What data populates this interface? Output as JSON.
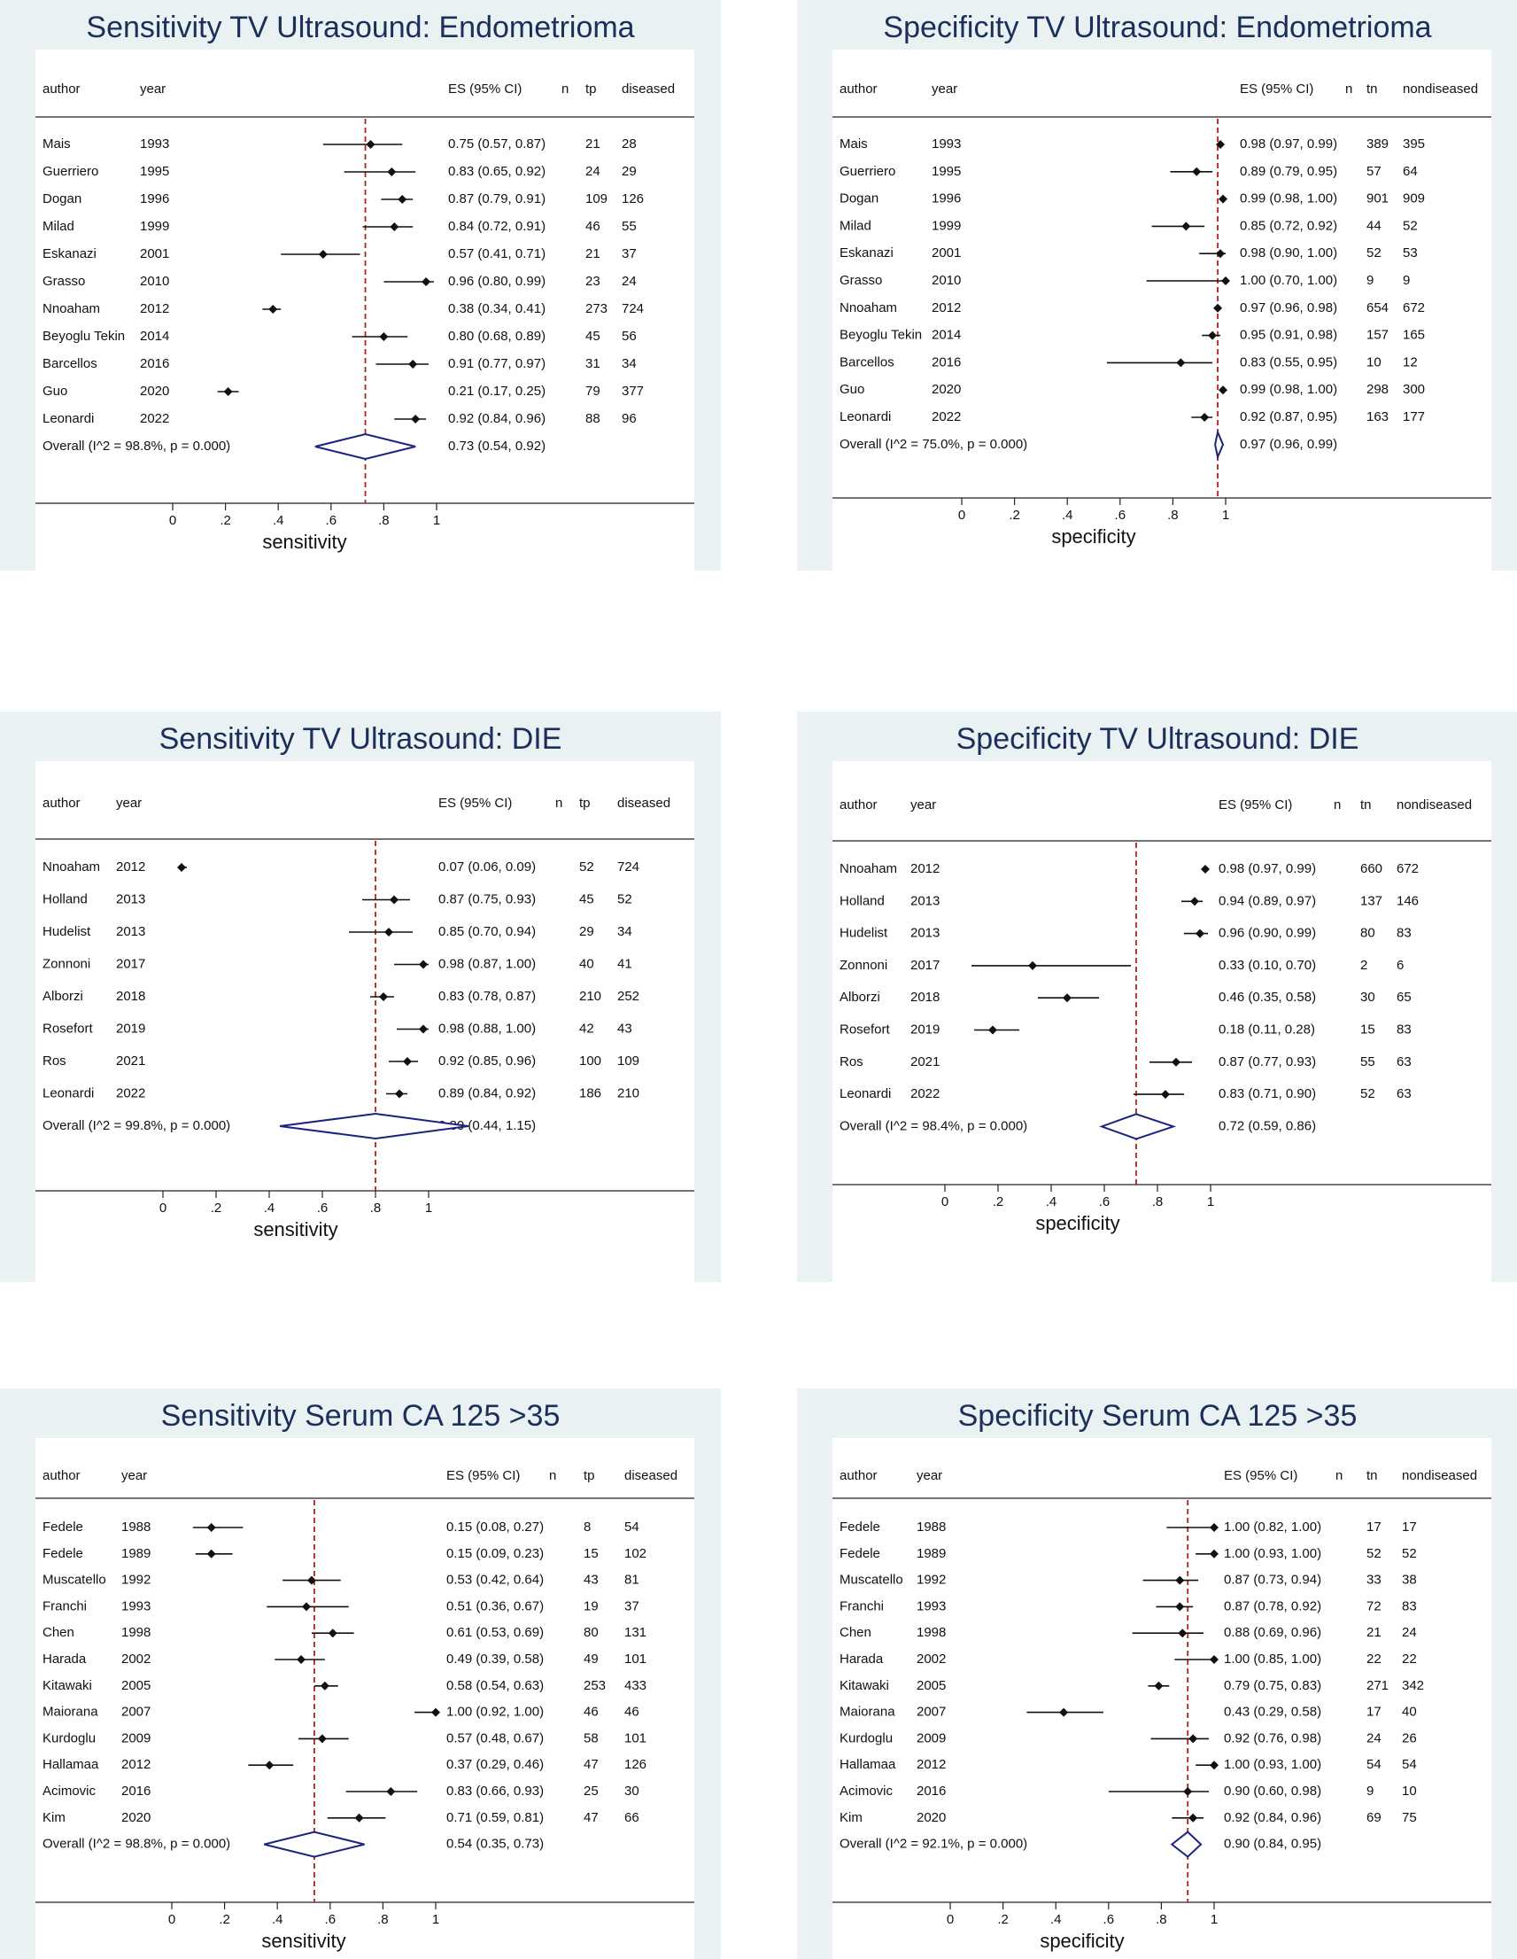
{
  "colors": {
    "panel_bg": "#e9f1f3",
    "plot_bg": "#ffffff",
    "title": "#1a2f5a",
    "diamond": "#1a237e",
    "ref_line": "#b22222",
    "marker": "#111111",
    "text": "#111111"
  },
  "chart_data": [
    {
      "type": "forest",
      "title": "Sensitivity TV Ultrasound: Endometrioma",
      "columns": {
        "author": "author",
        "year": "year",
        "es": "ES (95% CI)",
        "n": "n",
        "count": "tp",
        "total": "diseased"
      },
      "xlabel": "sensitivity",
      "xticks": [
        "0",
        ".2",
        ".4",
        ".6",
        ".8",
        "1"
      ],
      "xlim": [
        0,
        1
      ],
      "reference_line": 0.73,
      "studies": [
        {
          "author": "Mais",
          "year": "1993",
          "es": 0.75,
          "lo": 0.57,
          "hi": 0.87,
          "ci_text": "0.75 (0.57, 0.87)",
          "count": "21",
          "total": "28"
        },
        {
          "author": "Guerriero",
          "year": "1995",
          "es": 0.83,
          "lo": 0.65,
          "hi": 0.92,
          "ci_text": "0.83 (0.65, 0.92)",
          "count": "24",
          "total": "29"
        },
        {
          "author": "Dogan",
          "year": "1996",
          "es": 0.87,
          "lo": 0.79,
          "hi": 0.91,
          "ci_text": "0.87 (0.79, 0.91)",
          "count": "109",
          "total": "126"
        },
        {
          "author": "Milad",
          "year": "1999",
          "es": 0.84,
          "lo": 0.72,
          "hi": 0.91,
          "ci_text": "0.84 (0.72, 0.91)",
          "count": "46",
          "total": "55"
        },
        {
          "author": "Eskanazi",
          "year": "2001",
          "es": 0.57,
          "lo": 0.41,
          "hi": 0.71,
          "ci_text": "0.57 (0.41, 0.71)",
          "count": "21",
          "total": "37"
        },
        {
          "author": "Grasso",
          "year": "2010",
          "es": 0.96,
          "lo": 0.8,
          "hi": 0.99,
          "ci_text": "0.96 (0.80, 0.99)",
          "count": "23",
          "total": "24"
        },
        {
          "author": "Nnoaham",
          "year": "2012",
          "es": 0.38,
          "lo": 0.34,
          "hi": 0.41,
          "ci_text": "0.38 (0.34, 0.41)",
          "count": "273",
          "total": "724"
        },
        {
          "author": "Beyoglu Tekin",
          "year": "2014",
          "es": 0.8,
          "lo": 0.68,
          "hi": 0.89,
          "ci_text": "0.80 (0.68, 0.89)",
          "count": "45",
          "total": "56"
        },
        {
          "author": "Barcellos",
          "year": "2016",
          "es": 0.91,
          "lo": 0.77,
          "hi": 0.97,
          "ci_text": "0.91 (0.77, 0.97)",
          "count": "31",
          "total": "34"
        },
        {
          "author": "Guo",
          "year": "2020",
          "es": 0.21,
          "lo": 0.17,
          "hi": 0.25,
          "ci_text": "0.21 (0.17, 0.25)",
          "count": "79",
          "total": "377"
        },
        {
          "author": "Leonardi",
          "year": "2022",
          "es": 0.92,
          "lo": 0.84,
          "hi": 0.96,
          "ci_text": "0.92 (0.84, 0.96)",
          "count": "88",
          "total": "96"
        }
      ],
      "overall": {
        "label": "Overall  (I^2 = 98.8%, p = 0.000)",
        "es": 0.73,
        "lo": 0.54,
        "hi": 0.92,
        "ci_text": "0.73 (0.54, 0.92)"
      }
    },
    {
      "type": "forest",
      "title": "Specificity TV Ultrasound: Endometrioma",
      "columns": {
        "author": "author",
        "year": "year",
        "es": "ES (95% CI)",
        "n": "n",
        "count": "tn",
        "total": "nondiseased"
      },
      "xlabel": "specificity",
      "xticks": [
        "0",
        ".2",
        ".4",
        ".6",
        ".8",
        "1"
      ],
      "xlim": [
        0,
        1
      ],
      "reference_line": 0.97,
      "studies": [
        {
          "author": "Mais",
          "year": "1993",
          "es": 0.98,
          "lo": 0.97,
          "hi": 0.99,
          "ci_text": "0.98 (0.97, 0.99)",
          "count": "389",
          "total": "395"
        },
        {
          "author": "Guerriero",
          "year": "1995",
          "es": 0.89,
          "lo": 0.79,
          "hi": 0.95,
          "ci_text": "0.89 (0.79, 0.95)",
          "count": "57",
          "total": "64"
        },
        {
          "author": "Dogan",
          "year": "1996",
          "es": 0.99,
          "lo": 0.98,
          "hi": 1.0,
          "ci_text": "0.99 (0.98, 1.00)",
          "count": "901",
          "total": "909"
        },
        {
          "author": "Milad",
          "year": "1999",
          "es": 0.85,
          "lo": 0.72,
          "hi": 0.92,
          "ci_text": "0.85 (0.72, 0.92)",
          "count": "44",
          "total": "52"
        },
        {
          "author": "Eskanazi",
          "year": "2001",
          "es": 0.98,
          "lo": 0.9,
          "hi": 1.0,
          "ci_text": "0.98 (0.90, 1.00)",
          "count": "52",
          "total": "53"
        },
        {
          "author": "Grasso",
          "year": "2010",
          "es": 1.0,
          "lo": 0.7,
          "hi": 1.0,
          "ci_text": "1.00 (0.70, 1.00)",
          "count": "9",
          "total": "9"
        },
        {
          "author": "Nnoaham",
          "year": "2012",
          "es": 0.97,
          "lo": 0.96,
          "hi": 0.98,
          "ci_text": "0.97 (0.96, 0.98)",
          "count": "654",
          "total": "672"
        },
        {
          "author": "Beyoglu Tekin",
          "year": "2014",
          "es": 0.95,
          "lo": 0.91,
          "hi": 0.98,
          "ci_text": "0.95 (0.91, 0.98)",
          "count": "157",
          "total": "165"
        },
        {
          "author": "Barcellos",
          "year": "2016",
          "es": 0.83,
          "lo": 0.55,
          "hi": 0.95,
          "ci_text": "0.83 (0.55, 0.95)",
          "count": "10",
          "total": "12"
        },
        {
          "author": "Guo",
          "year": "2020",
          "es": 0.99,
          "lo": 0.98,
          "hi": 1.0,
          "ci_text": "0.99 (0.98, 1.00)",
          "count": "298",
          "total": "300"
        },
        {
          "author": "Leonardi",
          "year": "2022",
          "es": 0.92,
          "lo": 0.87,
          "hi": 0.95,
          "ci_text": "0.92 (0.87, 0.95)",
          "count": "163",
          "total": "177"
        }
      ],
      "overall": {
        "label": "Overall  (I^2 = 75.0%, p = 0.000)",
        "es": 0.97,
        "lo": 0.96,
        "hi": 0.99,
        "ci_text": "0.97 (0.96, 0.99)"
      }
    },
    {
      "type": "forest",
      "title": "Sensitivity TV Ultrasound: DIE",
      "columns": {
        "author": "author",
        "year": "year",
        "es": "ES (95% CI)",
        "n": "n",
        "count": "tp",
        "total": "diseased"
      },
      "xlabel": "sensitivity",
      "xticks": [
        "0",
        ".2",
        ".4",
        ".6",
        ".8",
        "1"
      ],
      "xlim": [
        0,
        1
      ],
      "reference_line": 0.8,
      "studies": [
        {
          "author": "Nnoaham",
          "year": "2012",
          "es": 0.07,
          "lo": 0.06,
          "hi": 0.09,
          "ci_text": "0.07 (0.06, 0.09)",
          "count": "52",
          "total": "724"
        },
        {
          "author": "Holland",
          "year": "2013",
          "es": 0.87,
          "lo": 0.75,
          "hi": 0.93,
          "ci_text": "0.87 (0.75, 0.93)",
          "count": "45",
          "total": "52"
        },
        {
          "author": "Hudelist",
          "year": "2013",
          "es": 0.85,
          "lo": 0.7,
          "hi": 0.94,
          "ci_text": "0.85 (0.70, 0.94)",
          "count": "29",
          "total": "34"
        },
        {
          "author": "Zonnoni",
          "year": "2017",
          "es": 0.98,
          "lo": 0.87,
          "hi": 1.0,
          "ci_text": "0.98 (0.87, 1.00)",
          "count": "40",
          "total": "41"
        },
        {
          "author": "Alborzi",
          "year": "2018",
          "es": 0.83,
          "lo": 0.78,
          "hi": 0.87,
          "ci_text": "0.83 (0.78, 0.87)",
          "count": "210",
          "total": "252"
        },
        {
          "author": "Rosefort",
          "year": "2019",
          "es": 0.98,
          "lo": 0.88,
          "hi": 1.0,
          "ci_text": "0.98 (0.88, 1.00)",
          "count": "42",
          "total": "43"
        },
        {
          "author": "Ros",
          "year": "2021",
          "es": 0.92,
          "lo": 0.85,
          "hi": 0.96,
          "ci_text": "0.92 (0.85, 0.96)",
          "count": "100",
          "total": "109"
        },
        {
          "author": "Leonardi",
          "year": "2022",
          "es": 0.89,
          "lo": 0.84,
          "hi": 0.92,
          "ci_text": "0.89 (0.84, 0.92)",
          "count": "186",
          "total": "210"
        }
      ],
      "overall": {
        "label": "Overall  (I^2 = 99.8%, p = 0.000)",
        "es": 0.8,
        "lo": 0.44,
        "hi": 1.15,
        "ci_text": "0.80 (0.44, 1.15)"
      }
    },
    {
      "type": "forest",
      "title": "Specificity TV Ultrasound: DIE",
      "columns": {
        "author": "author",
        "year": "year",
        "es": "ES (95% CI)",
        "n": "n",
        "count": "tn",
        "total": "nondiseased"
      },
      "xlabel": "specificity",
      "xticks": [
        "0",
        ".2",
        ".4",
        ".6",
        ".8",
        "1"
      ],
      "xlim": [
        0,
        1
      ],
      "reference_line": 0.72,
      "studies": [
        {
          "author": "Nnoaham",
          "year": "2012",
          "es": 0.98,
          "lo": 0.97,
          "hi": 0.99,
          "ci_text": "0.98 (0.97, 0.99)",
          "count": "660",
          "total": "672"
        },
        {
          "author": "Holland",
          "year": "2013",
          "es": 0.94,
          "lo": 0.89,
          "hi": 0.97,
          "ci_text": "0.94 (0.89, 0.97)",
          "count": "137",
          "total": "146"
        },
        {
          "author": "Hudelist",
          "year": "2013",
          "es": 0.96,
          "lo": 0.9,
          "hi": 0.99,
          "ci_text": "0.96 (0.90, 0.99)",
          "count": "80",
          "total": "83"
        },
        {
          "author": "Zonnoni",
          "year": "2017",
          "es": 0.33,
          "lo": 0.1,
          "hi": 0.7,
          "ci_text": "0.33 (0.10, 0.70)",
          "count": "2",
          "total": "6"
        },
        {
          "author": "Alborzi",
          "year": "2018",
          "es": 0.46,
          "lo": 0.35,
          "hi": 0.58,
          "ci_text": "0.46 (0.35, 0.58)",
          "count": "30",
          "total": "65"
        },
        {
          "author": "Rosefort",
          "year": "2019",
          "es": 0.18,
          "lo": 0.11,
          "hi": 0.28,
          "ci_text": "0.18 (0.11, 0.28)",
          "count": "15",
          "total": "83"
        },
        {
          "author": "Ros",
          "year": "2021",
          "es": 0.87,
          "lo": 0.77,
          "hi": 0.93,
          "ci_text": "0.87 (0.77, 0.93)",
          "count": "55",
          "total": "63"
        },
        {
          "author": "Leonardi",
          "year": "2022",
          "es": 0.83,
          "lo": 0.71,
          "hi": 0.9,
          "ci_text": "0.83 (0.71, 0.90)",
          "count": "52",
          "total": "63"
        }
      ],
      "overall": {
        "label": "Overall  (I^2 = 98.4%, p = 0.000)",
        "es": 0.72,
        "lo": 0.59,
        "hi": 0.86,
        "ci_text": "0.72 (0.59, 0.86)"
      }
    },
    {
      "type": "forest",
      "title": "Sensitivity Serum CA 125 >35",
      "columns": {
        "author": "author",
        "year": "year",
        "es": "ES (95% CI)",
        "n": "n",
        "count": "tp",
        "total": "diseased"
      },
      "xlabel": "sensitivity",
      "xticks": [
        "0",
        ".2",
        ".4",
        ".6",
        ".8",
        "1"
      ],
      "xlim": [
        0,
        1
      ],
      "reference_line": 0.54,
      "studies": [
        {
          "author": "Fedele",
          "year": "1988",
          "es": 0.15,
          "lo": 0.08,
          "hi": 0.27,
          "ci_text": "0.15 (0.08, 0.27)",
          "count": "8",
          "total": "54"
        },
        {
          "author": "Fedele",
          "year": "1989",
          "es": 0.15,
          "lo": 0.09,
          "hi": 0.23,
          "ci_text": "0.15 (0.09, 0.23)",
          "count": "15",
          "total": "102"
        },
        {
          "author": "Muscatello",
          "year": "1992",
          "es": 0.53,
          "lo": 0.42,
          "hi": 0.64,
          "ci_text": "0.53 (0.42, 0.64)",
          "count": "43",
          "total": "81"
        },
        {
          "author": "Franchi",
          "year": "1993",
          "es": 0.51,
          "lo": 0.36,
          "hi": 0.67,
          "ci_text": "0.51 (0.36, 0.67)",
          "count": "19",
          "total": "37"
        },
        {
          "author": "Chen",
          "year": "1998",
          "es": 0.61,
          "lo": 0.53,
          "hi": 0.69,
          "ci_text": "0.61 (0.53, 0.69)",
          "count": "80",
          "total": "131"
        },
        {
          "author": "Harada",
          "year": "2002",
          "es": 0.49,
          "lo": 0.39,
          "hi": 0.58,
          "ci_text": "0.49 (0.39, 0.58)",
          "count": "49",
          "total": "101"
        },
        {
          "author": "Kitawaki",
          "year": "2005",
          "es": 0.58,
          "lo": 0.54,
          "hi": 0.63,
          "ci_text": "0.58 (0.54, 0.63)",
          "count": "253",
          "total": "433"
        },
        {
          "author": "Maiorana",
          "year": "2007",
          "es": 1.0,
          "lo": 0.92,
          "hi": 1.0,
          "ci_text": "1.00 (0.92, 1.00)",
          "count": "46",
          "total": "46"
        },
        {
          "author": "Kurdoglu",
          "year": "2009",
          "es": 0.57,
          "lo": 0.48,
          "hi": 0.67,
          "ci_text": "0.57 (0.48, 0.67)",
          "count": "58",
          "total": "101"
        },
        {
          "author": "Hallamaa",
          "year": "2012",
          "es": 0.37,
          "lo": 0.29,
          "hi": 0.46,
          "ci_text": "0.37 (0.29, 0.46)",
          "count": "47",
          "total": "126"
        },
        {
          "author": "Acimovic",
          "year": "2016",
          "es": 0.83,
          "lo": 0.66,
          "hi": 0.93,
          "ci_text": "0.83 (0.66, 0.93)",
          "count": "25",
          "total": "30"
        },
        {
          "author": "Kim",
          "year": "2020",
          "es": 0.71,
          "lo": 0.59,
          "hi": 0.81,
          "ci_text": "0.71 (0.59, 0.81)",
          "count": "47",
          "total": "66"
        }
      ],
      "overall": {
        "label": "Overall  (I^2 = 98.8%, p = 0.000)",
        "es": 0.54,
        "lo": 0.35,
        "hi": 0.73,
        "ci_text": "0.54 (0.35, 0.73)"
      }
    },
    {
      "type": "forest",
      "title": "Specificity Serum CA 125 >35",
      "columns": {
        "author": "author",
        "year": "year",
        "es": "ES (95% CI)",
        "n": "n",
        "count": "tn",
        "total": "nondiseased"
      },
      "xlabel": "specificity",
      "xticks": [
        "0",
        ".2",
        ".4",
        ".6",
        ".8",
        "1"
      ],
      "xlim": [
        0,
        1
      ],
      "reference_line": 0.9,
      "studies": [
        {
          "author": "Fedele",
          "year": "1988",
          "es": 1.0,
          "lo": 0.82,
          "hi": 1.0,
          "ci_text": "1.00 (0.82, 1.00)",
          "count": "17",
          "total": "17"
        },
        {
          "author": "Fedele",
          "year": "1989",
          "es": 1.0,
          "lo": 0.93,
          "hi": 1.0,
          "ci_text": "1.00 (0.93, 1.00)",
          "count": "52",
          "total": "52"
        },
        {
          "author": "Muscatello",
          "year": "1992",
          "es": 0.87,
          "lo": 0.73,
          "hi": 0.94,
          "ci_text": "0.87 (0.73, 0.94)",
          "count": "33",
          "total": "38"
        },
        {
          "author": "Franchi",
          "year": "1993",
          "es": 0.87,
          "lo": 0.78,
          "hi": 0.92,
          "ci_text": "0.87 (0.78, 0.92)",
          "count": "72",
          "total": "83"
        },
        {
          "author": "Chen",
          "year": "1998",
          "es": 0.88,
          "lo": 0.69,
          "hi": 0.96,
          "ci_text": "0.88 (0.69, 0.96)",
          "count": "21",
          "total": "24"
        },
        {
          "author": "Harada",
          "year": "2002",
          "es": 1.0,
          "lo": 0.85,
          "hi": 1.0,
          "ci_text": "1.00 (0.85, 1.00)",
          "count": "22",
          "total": "22"
        },
        {
          "author": "Kitawaki",
          "year": "2005",
          "es": 0.79,
          "lo": 0.75,
          "hi": 0.83,
          "ci_text": "0.79 (0.75, 0.83)",
          "count": "271",
          "total": "342"
        },
        {
          "author": "Maiorana",
          "year": "2007",
          "es": 0.43,
          "lo": 0.29,
          "hi": 0.58,
          "ci_text": "0.43 (0.29, 0.58)",
          "count": "17",
          "total": "40"
        },
        {
          "author": "Kurdoglu",
          "year": "2009",
          "es": 0.92,
          "lo": 0.76,
          "hi": 0.98,
          "ci_text": "0.92 (0.76, 0.98)",
          "count": "24",
          "total": "26"
        },
        {
          "author": "Hallamaa",
          "year": "2012",
          "es": 1.0,
          "lo": 0.93,
          "hi": 1.0,
          "ci_text": "1.00 (0.93, 1.00)",
          "count": "54",
          "total": "54"
        },
        {
          "author": "Acimovic",
          "year": "2016",
          "es": 0.9,
          "lo": 0.6,
          "hi": 0.98,
          "ci_text": "0.90 (0.60, 0.98)",
          "count": "9",
          "total": "10"
        },
        {
          "author": "Kim",
          "year": "2020",
          "es": 0.92,
          "lo": 0.84,
          "hi": 0.96,
          "ci_text": "0.92 (0.84, 0.96)",
          "count": "69",
          "total": "75"
        }
      ],
      "overall": {
        "label": "Overall  (I^2 = 92.1%, p = 0.000)",
        "es": 0.9,
        "lo": 0.84,
        "hi": 0.95,
        "ci_text": "0.90 (0.84, 0.95)"
      }
    }
  ]
}
